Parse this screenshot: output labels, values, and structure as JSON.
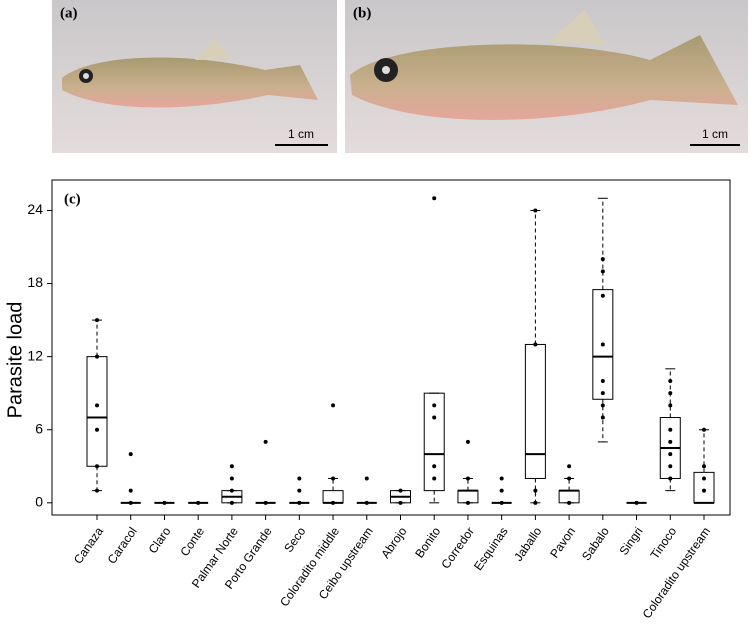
{
  "panels": [
    {
      "label": "(a)",
      "scale": "1 cm"
    },
    {
      "label": "(b)",
      "scale": "1 cm"
    }
  ],
  "chart_data": {
    "type": "boxplot",
    "label": "(c)",
    "y_label": "Parasite load",
    "color": "#000000",
    "categories": [
      "Canaza",
      "Caracol",
      "Claro",
      "Conte",
      "Palmar Norte",
      "Porto Grande",
      "Seco",
      "Coloradito middle",
      "Ceibo upstream",
      "Abrojo",
      "Bonito",
      "Corredor",
      "Esquinas",
      "Jaballo",
      "Pavon",
      "Sabalo",
      "Singri",
      "Tinoco",
      "Coloradito upstream"
    ],
    "boxes": [
      {
        "min": 1,
        "q1": 3,
        "median": 7,
        "q3": 12,
        "max": 15,
        "points": [
          1,
          3,
          6,
          8,
          12,
          15
        ]
      },
      {
        "min": 0,
        "q1": 0,
        "median": 0,
        "q3": 0,
        "max": 0,
        "points": [
          0,
          1,
          4
        ]
      },
      {
        "min": 0,
        "q1": 0,
        "median": 0,
        "q3": 0,
        "max": 0,
        "points": [
          0
        ]
      },
      {
        "min": 0,
        "q1": 0,
        "median": 0,
        "q3": 0,
        "max": 0,
        "points": [
          0
        ]
      },
      {
        "min": 0,
        "q1": 0,
        "median": 0.5,
        "q3": 1,
        "max": 1,
        "points": [
          0,
          1,
          2,
          3
        ]
      },
      {
        "min": 0,
        "q1": 0,
        "median": 0,
        "q3": 0,
        "max": 0,
        "points": [
          0,
          5
        ]
      },
      {
        "min": 0,
        "q1": 0,
        "median": 0,
        "q3": 0,
        "max": 0,
        "points": [
          0,
          1,
          2
        ]
      },
      {
        "min": 0,
        "q1": 0,
        "median": 0,
        "q3": 1,
        "max": 2,
        "points": [
          0,
          2,
          8
        ]
      },
      {
        "min": 0,
        "q1": 0,
        "median": 0,
        "q3": 0,
        "max": 0,
        "points": [
          0,
          2
        ]
      },
      {
        "min": 0,
        "q1": 0,
        "median": 0.5,
        "q3": 1,
        "max": 1,
        "points": [
          0,
          1
        ]
      },
      {
        "min": 0,
        "q1": 1,
        "median": 4,
        "q3": 9,
        "max": 9,
        "points": [
          2,
          3,
          7,
          8,
          25
        ]
      },
      {
        "min": 0,
        "q1": 0,
        "median": 1,
        "q3": 1,
        "max": 2,
        "points": [
          0,
          2,
          5
        ]
      },
      {
        "min": 0,
        "q1": 0,
        "median": 0,
        "q3": 0,
        "max": 0,
        "points": [
          0,
          1,
          2
        ]
      },
      {
        "min": 0,
        "q1": 2,
        "median": 4,
        "q3": 13,
        "max": 24,
        "points": [
          0,
          1,
          13,
          24
        ]
      },
      {
        "min": 0,
        "q1": 0,
        "median": 1,
        "q3": 1,
        "max": 2,
        "points": [
          0,
          2,
          3
        ]
      },
      {
        "min": 5,
        "q1": 8.5,
        "median": 12,
        "q3": 17.5,
        "max": 25,
        "points": [
          7,
          8,
          9,
          10,
          13,
          17,
          19,
          20
        ]
      },
      {
        "min": 0,
        "q1": 0,
        "median": 0,
        "q3": 0,
        "max": 0,
        "points": [
          0
        ]
      },
      {
        "min": 1,
        "q1": 2,
        "median": 4.5,
        "q3": 7,
        "max": 11,
        "points": [
          2,
          3,
          4,
          5,
          6,
          8,
          9,
          10
        ]
      },
      {
        "min": 0,
        "q1": 0,
        "median": 0,
        "q3": 2.5,
        "max": 6,
        "points": [
          1,
          2,
          3,
          6
        ]
      }
    ],
    "ylim": [
      -1,
      26.5
    ],
    "yticks": [
      0,
      6,
      12,
      18,
      24
    ]
  }
}
